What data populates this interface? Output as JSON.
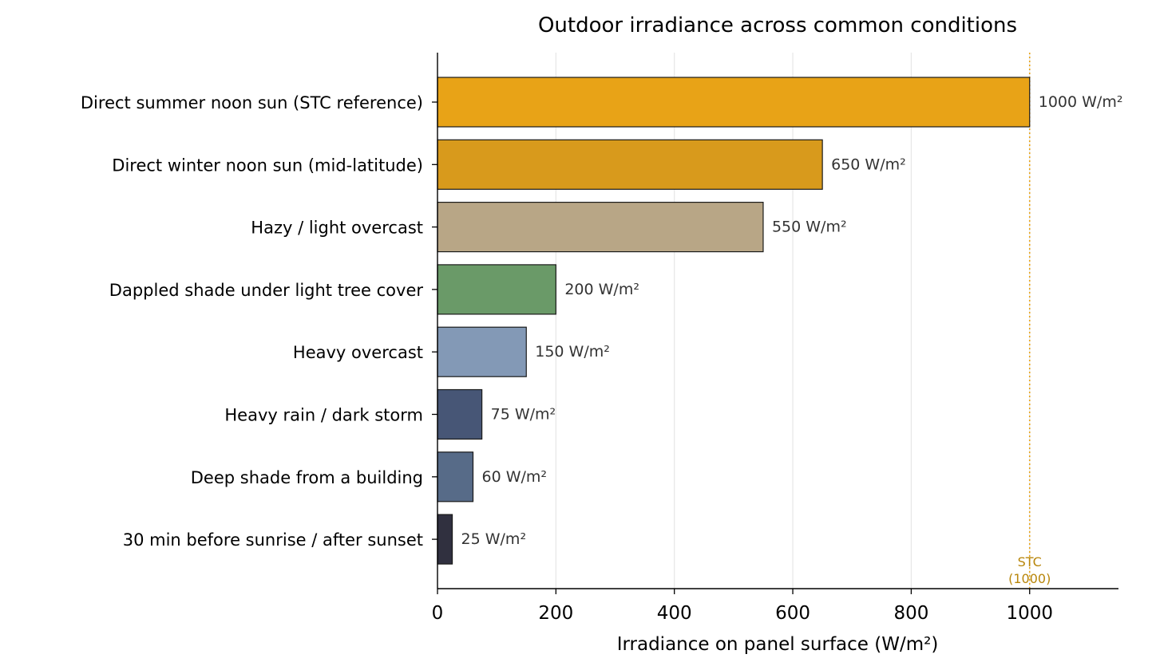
{
  "chart_data": {
    "type": "bar",
    "orientation": "horizontal",
    "title": "Outdoor irradiance across common conditions",
    "xlabel": "Irradiance on panel surface (W/m²)",
    "ylabel": "",
    "xlim": [
      0,
      1150
    ],
    "xticks": [
      "0",
      "200",
      "400",
      "600",
      "800",
      "1000"
    ],
    "grid": "vertical",
    "categories": [
      "Direct summer noon sun (STC reference)",
      "Direct winter noon sun (mid-latitude)",
      "Hazy / light overcast",
      "Dappled shade under light tree cover",
      "Heavy overcast",
      "Heavy rain / dark storm",
      "Deep shade from a building",
      "30 min before sunrise / after sunset"
    ],
    "values": [
      1000,
      650,
      550,
      200,
      150,
      75,
      60,
      25
    ],
    "value_labels": [
      "1000 W/m²",
      "650 W/m²",
      "550 W/m²",
      "200 W/m²",
      "150 W/m²",
      "75 W/m²",
      "60 W/m²",
      "25 W/m²"
    ],
    "colors": [
      "#e8a317",
      "#d89a1c",
      "#b8a686",
      "#6a9a68",
      "#8399b6",
      "#475676",
      "#576b88",
      "#30303f"
    ],
    "reference_line": {
      "value": 1000,
      "label_line1": "STC",
      "label_line2": "(1000)",
      "color": "#e8a317",
      "label_color": "#b8860b"
    }
  }
}
